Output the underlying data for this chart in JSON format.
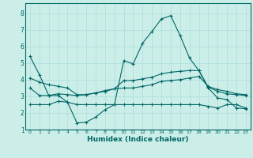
{
  "xlabel": "Humidex (Indice chaleur)",
  "bg_color": "#cceee8",
  "line_color": "#006666",
  "grid_color": "#aadddd",
  "xlim": [
    -0.5,
    23.5
  ],
  "ylim": [
    1,
    8.6
  ],
  "yticks": [
    1,
    2,
    3,
    4,
    5,
    6,
    7,
    8
  ],
  "xticks": [
    0,
    1,
    2,
    3,
    4,
    5,
    6,
    7,
    8,
    9,
    10,
    11,
    12,
    13,
    14,
    15,
    16,
    17,
    18,
    19,
    20,
    21,
    22,
    23
  ],
  "line1_x": [
    0,
    1,
    2,
    3,
    4,
    5,
    6,
    7,
    8,
    9,
    10,
    11,
    12,
    13,
    14,
    15,
    16,
    17,
    18,
    19,
    20,
    21,
    22,
    23
  ],
  "line1_y": [
    5.4,
    4.3,
    3.05,
    3.05,
    2.65,
    1.4,
    1.45,
    1.75,
    2.2,
    2.5,
    5.15,
    4.95,
    6.2,
    6.9,
    7.65,
    7.85,
    6.65,
    5.3,
    4.55,
    3.5,
    2.9,
    2.8,
    2.3,
    2.25
  ],
  "line2_x": [
    0,
    1,
    2,
    3,
    4,
    5,
    6,
    7,
    8,
    9,
    10,
    11,
    12,
    13,
    14,
    15,
    16,
    17,
    18,
    19,
    20,
    21,
    22,
    23
  ],
  "line2_y": [
    3.5,
    3.05,
    3.05,
    3.15,
    3.1,
    3.05,
    3.1,
    3.2,
    3.3,
    3.45,
    3.5,
    3.5,
    3.6,
    3.7,
    3.9,
    3.95,
    4.0,
    4.1,
    4.2,
    3.6,
    3.4,
    3.3,
    3.15,
    3.1
  ],
  "line3_x": [
    0,
    1,
    2,
    3,
    4,
    5,
    6,
    7,
    8,
    9,
    10,
    11,
    12,
    13,
    14,
    15,
    16,
    17,
    18,
    19,
    20,
    21,
    22,
    23
  ],
  "line3_y": [
    4.1,
    3.85,
    3.7,
    3.6,
    3.5,
    3.1,
    3.1,
    3.2,
    3.35,
    3.45,
    3.95,
    3.95,
    4.05,
    4.15,
    4.35,
    4.45,
    4.5,
    4.55,
    4.55,
    3.55,
    3.3,
    3.15,
    3.1,
    3.05
  ],
  "line4_x": [
    0,
    1,
    2,
    3,
    4,
    5,
    6,
    7,
    8,
    9,
    10,
    11,
    12,
    13,
    14,
    15,
    16,
    17,
    18,
    19,
    20,
    21,
    22,
    23
  ],
  "line4_y": [
    2.5,
    2.5,
    2.5,
    2.7,
    2.65,
    2.5,
    2.5,
    2.5,
    2.5,
    2.5,
    2.5,
    2.5,
    2.5,
    2.5,
    2.5,
    2.5,
    2.5,
    2.5,
    2.5,
    2.4,
    2.3,
    2.5,
    2.5,
    2.3
  ]
}
